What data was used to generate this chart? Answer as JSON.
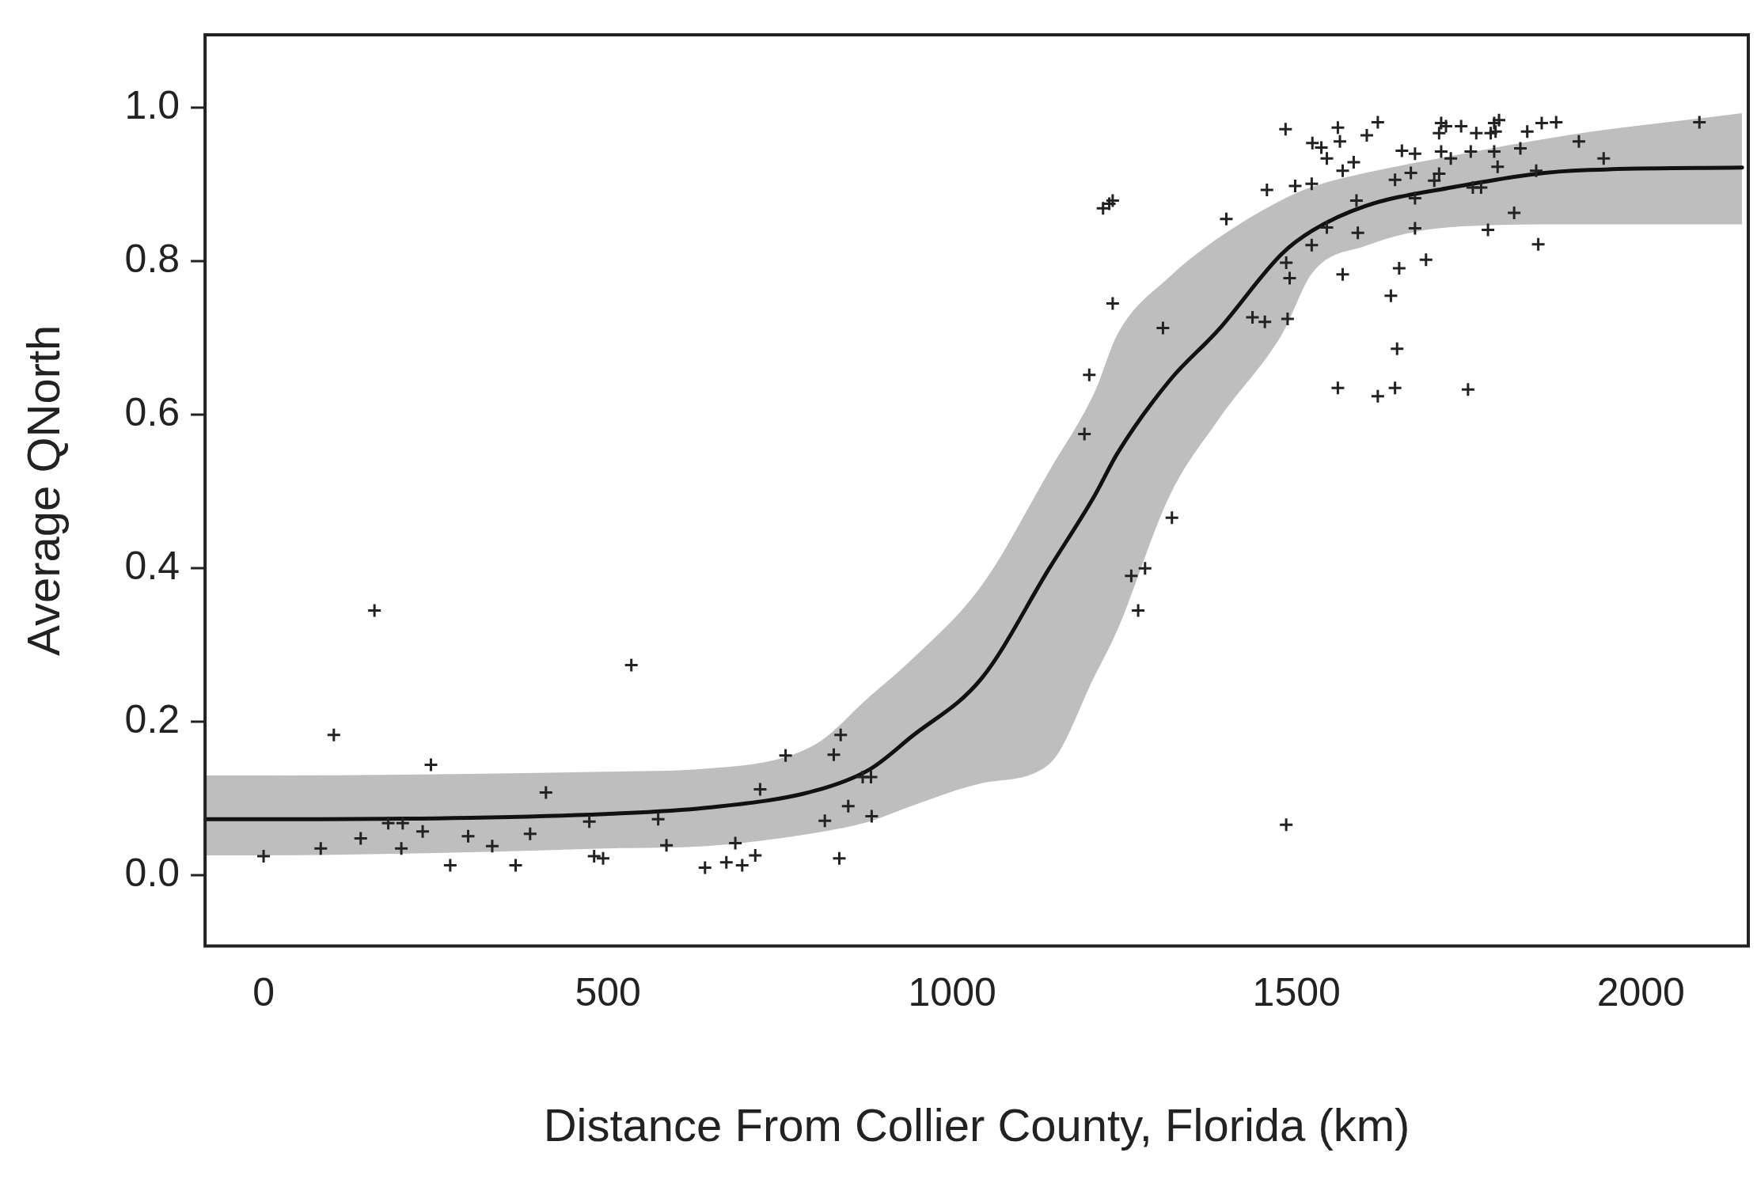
{
  "chart_data": {
    "type": "scatter",
    "xlabel": "Distance From Collier County, Florida (km)",
    "ylabel": "Average QNorth",
    "xlim": [
      -85,
      2156
    ],
    "ylim": [
      -0.092,
      1.095
    ],
    "xticks": [
      0,
      500,
      1000,
      1500,
      2000
    ],
    "yticks": [
      {
        "value": 0,
        "label": "0.0"
      },
      {
        "value": 0.2,
        "label": "0.2"
      },
      {
        "value": 0.4,
        "label": "0.4"
      },
      {
        "value": 0.6,
        "label": "0.6"
      },
      {
        "value": 0.8,
        "label": "0.8"
      },
      {
        "value": 1,
        "label": "1.0"
      }
    ],
    "grid": false,
    "legend": false,
    "series": [
      {
        "type": "line",
        "color": "#111111",
        "line_style": "solid",
        "marker": "none",
        "x": [
          -85,
          0,
          300,
          500,
          643,
          800,
          880,
          940,
          1043,
          1141,
          1207,
          1240,
          1316,
          1386,
          1479,
          1523,
          1600,
          1718,
          1900,
          2147
        ],
        "values": [
          0.073,
          0.073,
          0.075,
          0.08,
          0.088,
          0.11,
          0.138,
          0.18,
          0.257,
          0.4,
          0.495,
          0.55,
          0.645,
          0.71,
          0.81,
          0.84,
          0.872,
          0.895,
          0.918,
          0.922
        ],
        "lower": [
          0.026,
          0.026,
          0.03,
          0.035,
          0.038,
          0.055,
          0.07,
          0.09,
          0.12,
          0.145,
          0.26,
          0.32,
          0.495,
          0.593,
          0.705,
          0.785,
          0.82,
          0.844,
          0.848,
          0.848
        ],
        "upper": [
          0.13,
          0.13,
          0.132,
          0.135,
          0.139,
          0.17,
          0.233,
          0.28,
          0.378,
          0.527,
          0.63,
          0.705,
          0.78,
          0.83,
          0.88,
          0.897,
          0.915,
          0.936,
          0.965,
          0.993
        ]
      },
      {
        "color": "#222222",
        "marker": "cross",
        "x": [
          0,
          83,
          102,
          141,
          161,
          181,
          200,
          202,
          231,
          243,
          271,
          297,
          332,
          366,
          387,
          410,
          473,
          480,
          493,
          534,
          573,
          585,
          641,
          672,
          685,
          695,
          714,
          721,
          758,
          815,
          828,
          838,
          836,
          849,
          870,
          882,
          883,
          1192,
          1199,
          1233,
          1219,
          1228,
          1233,
          1260,
          1280,
          1270,
          1319,
          1306,
          1485,
          1398,
          1457,
          1484,
          1498,
          1522,
          1523,
          1536,
          1544,
          1560,
          1563,
          1567,
          1583,
          1602,
          1618,
          1643,
          1653,
          1666,
          1672,
          1672,
          1672,
          1688,
          1649,
          1637,
          1587,
          1544,
          1589,
          1522,
          1490,
          1485,
          1436,
          1454,
          1487,
          1567,
          1646,
          1560,
          1618,
          1643,
          1749,
          1710,
          1707,
          1717,
          1739,
          1710,
          1724,
          1700,
          1707,
          1753,
          1761,
          1756,
          1768,
          1787,
          1794,
          1782,
          1789,
          1787,
          1792,
          1816,
          1778,
          1851,
          1825,
          1835,
          1856,
          1877,
          1848,
          1910,
          1946,
          2085
        ],
        "values": [
          0.025,
          0.035,
          0.183,
          0.048,
          0.345,
          0.068,
          0.035,
          0.068,
          0.057,
          0.144,
          0.013,
          0.051,
          0.038,
          0.013,
          0.054,
          0.108,
          0.07,
          0.025,
          0.022,
          0.274,
          0.073,
          0.039,
          0.01,
          0.017,
          0.042,
          0.013,
          0.026,
          0.112,
          0.156,
          0.071,
          0.157,
          0.183,
          0.022,
          0.09,
          0.128,
          0.128,
          0.077,
          0.575,
          0.652,
          0.745,
          0.869,
          0.875,
          0.879,
          0.39,
          0.4,
          0.345,
          0.466,
          0.713,
          0.066,
          0.855,
          0.893,
          0.972,
          0.898,
          0.901,
          0.954,
          0.948,
          0.934,
          0.974,
          0.956,
          0.918,
          0.929,
          0.964,
          0.981,
          0.906,
          0.944,
          0.915,
          0.94,
          0.882,
          0.843,
          0.802,
          0.791,
          0.755,
          0.879,
          0.844,
          0.837,
          0.821,
          0.778,
          0.798,
          0.727,
          0.721,
          0.725,
          0.783,
          0.686,
          0.635,
          0.624,
          0.635,
          0.633,
          0.98,
          0.967,
          0.976,
          0.976,
          0.943,
          0.934,
          0.905,
          0.914,
          0.943,
          0.967,
          0.896,
          0.896,
          0.98,
          0.984,
          0.967,
          0.969,
          0.943,
          0.923,
          0.863,
          0.841,
          0.822,
          0.947,
          0.969,
          0.98,
          0.981,
          0.918,
          0.956,
          0.934,
          0.981
        ]
      }
    ]
  }
}
